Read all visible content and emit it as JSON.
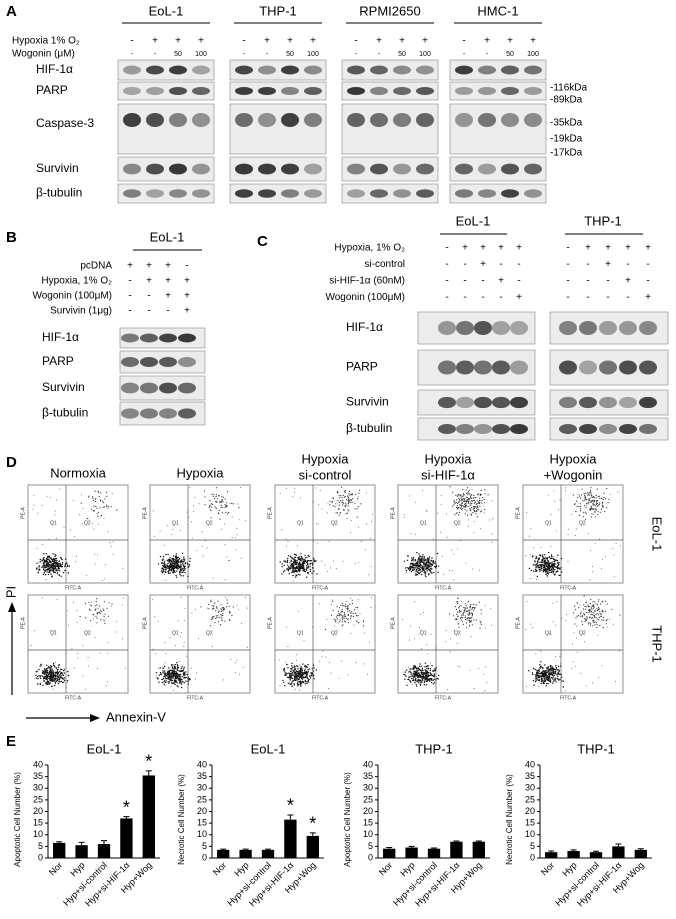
{
  "panel_a": {
    "label": "A",
    "cell_lines": [
      "EoL-1",
      "THP-1",
      "RPMI2650",
      "HMC-1"
    ],
    "treatments": [
      {
        "label": "Hypoxia 1% O₂",
        "signs": [
          "-",
          "+",
          "+",
          "+"
        ]
      },
      {
        "label": "Wogonin (μM)",
        "signs": [
          "-",
          "-",
          "50",
          "100"
        ]
      }
    ],
    "blots": [
      "HIF-1α",
      "PARP",
      "Caspase-3",
      "Survivin",
      "β-tubulin"
    ],
    "markers": [
      "-116kDa",
      "-89kDa",
      "-35kDa",
      "-19kDa",
      "-17kDa"
    ]
  },
  "panel_b": {
    "label": "B",
    "cell_line": "EoL-1",
    "treatments": [
      {
        "label": "pcDNA",
        "signs": [
          "+",
          "+",
          "+",
          "-"
        ]
      },
      {
        "label": "Hypoxia, 1% O₂",
        "signs": [
          "-",
          "+",
          "+",
          "+"
        ]
      },
      {
        "label": "Wogonin (100μM)",
        "signs": [
          "-",
          "-",
          "+",
          "+"
        ]
      },
      {
        "label": "Survivin  (1μg)",
        "signs": [
          "-",
          "-",
          "-",
          "+"
        ]
      }
    ],
    "blots": [
      "HIF-1α",
      "PARP",
      "Survivin",
      "β-tubulin"
    ]
  },
  "panel_c": {
    "label": "C",
    "cell_lines": [
      "EoL-1",
      "THP-1"
    ],
    "treatments": [
      {
        "label": "Hypoxia, 1% O₂",
        "signs": [
          "-",
          "+",
          "+",
          "+",
          "+"
        ]
      },
      {
        "label": "si-control",
        "signs": [
          "-",
          "-",
          "+",
          "-",
          "-"
        ]
      },
      {
        "label": "si-HIF-1α (60nM)",
        "signs": [
          "-",
          "-",
          "-",
          "+",
          "-"
        ]
      },
      {
        "label": "Wogonin (100μM)",
        "signs": [
          "-",
          "-",
          "-",
          "-",
          "+"
        ]
      }
    ],
    "blots": [
      "HIF-1α",
      "PARP",
      "Survivin",
      "β-tubulin"
    ]
  },
  "panel_d": {
    "label": "D",
    "columns": [
      [
        "Normoxia"
      ],
      [
        "Hypoxia"
      ],
      [
        "Hypoxia",
        "si-control"
      ],
      [
        "Hypoxia",
        "si-HIF-1α"
      ],
      [
        "Hypoxia",
        "+Wogonin"
      ]
    ],
    "rows": [
      "EoL-1",
      "THP-1"
    ],
    "y_axis": "PI",
    "x_axis": "Annexin-V",
    "plot_y_label": "PE-A",
    "plot_x_label": "FITC-A",
    "quadrant_labels": [
      "Q1",
      "Q2"
    ]
  },
  "panel_e": {
    "label": "E",
    "charts": [
      {
        "type": "bar",
        "title": "EoL-1",
        "y_label": "Apoptotic Cell Number (%)",
        "categories": [
          "Nor",
          "Hyp",
          "Hyp+si-control",
          "Hyp+si-HIF-1α",
          "Hyp+Wog"
        ],
        "values": [
          6.5,
          5.5,
          6,
          17,
          35.5
        ],
        "errors": [
          0.5,
          1.2,
          1.5,
          0.8,
          2
        ],
        "significance": [
          null,
          null,
          null,
          "*",
          "*"
        ],
        "color": "#000000",
        "ylim": [
          0,
          40
        ],
        "yticks": [
          0,
          5,
          10,
          15,
          20,
          25,
          30,
          35,
          40
        ]
      },
      {
        "type": "bar",
        "title": "EoL-1",
        "y_label": "Necrotic Cell Number (%)",
        "categories": [
          "Nor",
          "Hyp",
          "Hyp+si-control",
          "Hyp+si-HIF-1α",
          "Hyp+Wog"
        ],
        "values": [
          3.5,
          3.5,
          3.5,
          16.5,
          9.5
        ],
        "errors": [
          0.3,
          0.3,
          0.3,
          2,
          1.3
        ],
        "significance": [
          null,
          null,
          null,
          "*",
          "*"
        ],
        "color": "#000000",
        "ylim": [
          0,
          40
        ],
        "yticks": [
          0,
          5,
          10,
          15,
          20,
          25,
          30,
          35,
          40
        ]
      },
      {
        "type": "bar",
        "title": "THP-1",
        "y_label": "Apoptotic Cell Number (%)",
        "categories": [
          "Nor",
          "Hyp",
          "Hyp+si-control",
          "Hyp+si-HIF-1α",
          "Hyp+Wog"
        ],
        "values": [
          4,
          4.5,
          4,
          7,
          7
        ],
        "errors": [
          0.5,
          0.5,
          0.3,
          0.3,
          0.3
        ],
        "color": "#000000",
        "ylim": [
          0,
          40
        ],
        "yticks": [
          0,
          5,
          10,
          15,
          20,
          25,
          30,
          35,
          40
        ]
      },
      {
        "type": "bar",
        "title": "THP-1",
        "y_label": "Necrotic Cell Number (%)",
        "categories": [
          "Nor",
          "Hyp",
          "Hyp+si-control",
          "Hyp+si-HIF-1α",
          "Hyp+Wog"
        ],
        "values": [
          2.5,
          3,
          2.5,
          5,
          3.5
        ],
        "errors": [
          0.5,
          0.5,
          0.4,
          1,
          0.5
        ],
        "color": "#000000",
        "ylim": [
          0,
          40
        ],
        "yticks": [
          0,
          5,
          10,
          15,
          20,
          25,
          30,
          35,
          40
        ]
      }
    ]
  }
}
